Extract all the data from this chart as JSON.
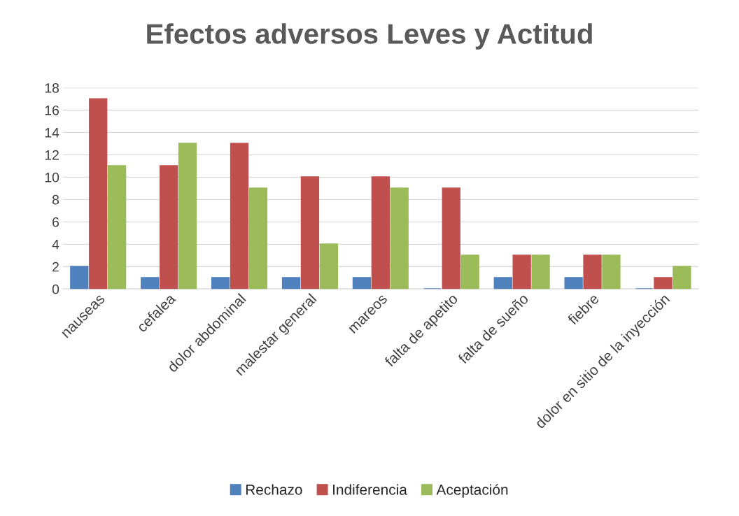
{
  "chart_data": {
    "type": "bar",
    "title": "Efectos adversos Leves y Actitud",
    "categories": [
      "nauseas",
      "cefalea",
      "dolor abdominal",
      "malestar general",
      "mareos",
      "falta de apetito",
      "falta de sueño",
      "fiebre",
      "dolor en sitio de la inyección"
    ],
    "series": [
      {
        "name": "Rechazo",
        "color": "#4f81bd",
        "values": [
          2,
          1,
          1,
          1,
          1,
          0,
          1,
          1,
          0
        ]
      },
      {
        "name": "Indiferencia",
        "color": "#c0504d",
        "values": [
          17,
          11,
          13,
          10,
          10,
          9,
          3,
          3,
          1
        ]
      },
      {
        "name": "Aceptación",
        "color": "#9bbb59",
        "values": [
          11,
          13,
          9,
          4,
          9,
          3,
          3,
          3,
          2
        ]
      }
    ],
    "ylim": [
      0,
      18
    ],
    "yticks": [
      0,
      2,
      4,
      6,
      8,
      10,
      12,
      14,
      16,
      18
    ],
    "grid": "y",
    "legend": "bottom"
  }
}
